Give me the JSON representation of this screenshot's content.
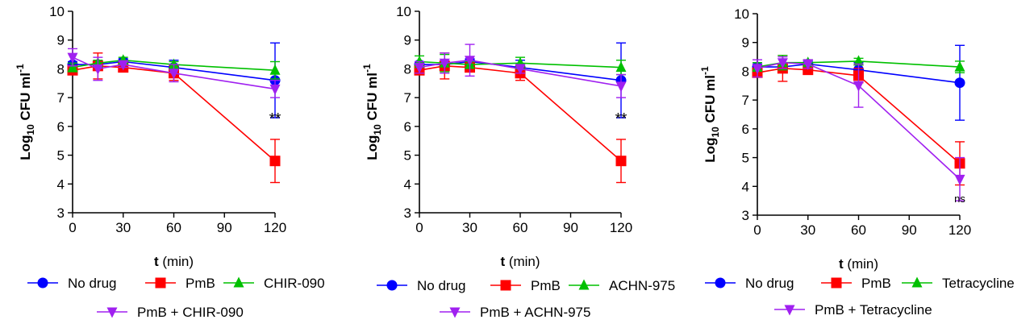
{
  "chart_data": [
    {
      "type": "line",
      "ylabel": {
        "base": "Log",
        "sub": "10",
        "main": " CFU ml",
        "sup": "-1"
      },
      "xlabel": {
        "bold": "t",
        "rest": " (min)"
      },
      "ylim": [
        3,
        10
      ],
      "xlim": [
        0,
        120
      ],
      "yticks": [
        "3",
        "4",
        "5",
        "6",
        "7",
        "8",
        "9",
        "10"
      ],
      "xticks": [
        "0",
        "30",
        "60",
        "90",
        "120"
      ],
      "grid": false,
      "legend_position": "bottom",
      "annotation": {
        "text": "**",
        "x": 120,
        "y": 6.1
      },
      "series": [
        {
          "name": "No drug",
          "color": "#0000ff",
          "marker": "circle",
          "x": [
            0,
            15,
            30,
            60,
            120
          ],
          "y": [
            8.15,
            8.15,
            8.25,
            8.05,
            7.6
          ],
          "err": [
            0.1,
            0.12,
            0.1,
            0.25,
            1.3
          ]
        },
        {
          "name": "PmB",
          "color": "#ff0000",
          "marker": "square",
          "x": [
            0,
            15,
            30,
            60,
            120
          ],
          "y": [
            7.95,
            8.1,
            8.05,
            7.85,
            4.8
          ],
          "err": [
            0.15,
            0.45,
            0.15,
            0.25,
            0.75
          ]
        },
        {
          "name": "CHIR-090",
          "color": "#00c000",
          "marker": "triangle-up",
          "x": [
            0,
            15,
            30,
            60,
            120
          ],
          "y": [
            8.05,
            8.2,
            8.3,
            8.15,
            7.95
          ],
          "err": [
            0.15,
            0.1,
            0.1,
            0.1,
            0.3
          ]
        },
        {
          "name": "PmB + CHIR-090",
          "color": "#a020f0",
          "marker": "triangle-down",
          "x": [
            0,
            15,
            30,
            60,
            120
          ],
          "y": [
            8.4,
            8.0,
            8.15,
            7.85,
            7.3
          ],
          "err": [
            0.3,
            0.4,
            0.1,
            0.3,
            0.3
          ]
        }
      ]
    },
    {
      "type": "line",
      "ylabel": {
        "base": "Log",
        "sub": "10",
        "main": " CFU ml",
        "sup": "-1"
      },
      "xlabel": {
        "bold": "t",
        "rest": " (min)"
      },
      "ylim": [
        3,
        10
      ],
      "xlim": [
        0,
        120
      ],
      "yticks": [
        "3",
        "4",
        "5",
        "6",
        "7",
        "8",
        "9",
        "10"
      ],
      "xticks": [
        "0",
        "30",
        "60",
        "90",
        "120"
      ],
      "grid": false,
      "legend_position": "bottom",
      "annotation": {
        "text": "**",
        "x": 120,
        "y": 6.1
      },
      "series": [
        {
          "name": "No drug",
          "color": "#0000ff",
          "marker": "circle",
          "x": [
            0,
            15,
            30,
            60,
            120
          ],
          "y": [
            8.15,
            8.15,
            8.25,
            8.05,
            7.6
          ],
          "err": [
            0.1,
            0.12,
            0.1,
            0.25,
            1.3
          ]
        },
        {
          "name": "PmB",
          "color": "#ff0000",
          "marker": "square",
          "x": [
            0,
            15,
            30,
            60,
            120
          ],
          "y": [
            7.95,
            8.1,
            8.05,
            7.85,
            4.8
          ],
          "err": [
            0.15,
            0.45,
            0.15,
            0.25,
            0.75
          ]
        },
        {
          "name": "ACHN-975",
          "color": "#00c000",
          "marker": "triangle-up",
          "x": [
            0,
            15,
            30,
            60,
            120
          ],
          "y": [
            8.25,
            8.2,
            8.15,
            8.2,
            8.05
          ],
          "err": [
            0.2,
            0.3,
            0.1,
            0.2,
            0.25
          ]
        },
        {
          "name": "PmB + ACHN-975",
          "color": "#a020f0",
          "marker": "triangle-down",
          "x": [
            0,
            15,
            30,
            60,
            120
          ],
          "y": [
            8.05,
            8.2,
            8.3,
            8.0,
            7.4
          ],
          "err": [
            0.2,
            0.35,
            0.55,
            0.15,
            0.4
          ]
        }
      ]
    },
    {
      "type": "line",
      "ylabel": {
        "base": "Log",
        "sub": "10",
        "main": " CFU ml",
        "sup": "-1"
      },
      "xlabel": {
        "bold": "t",
        "rest": " (min)"
      },
      "ylim": [
        3,
        10
      ],
      "xlim": [
        0,
        120
      ],
      "yticks": [
        "3",
        "4",
        "5",
        "6",
        "7",
        "8",
        "9",
        "10"
      ],
      "xticks": [
        "0",
        "30",
        "60",
        "90",
        "120"
      ],
      "grid": false,
      "legend_position": "bottom",
      "annotation": {
        "text": "ns",
        "x": 120,
        "y": 3.45
      },
      "series": [
        {
          "name": "No drug",
          "color": "#0000ff",
          "marker": "circle",
          "x": [
            0,
            15,
            30,
            60,
            120
          ],
          "y": [
            8.15,
            8.15,
            8.25,
            8.05,
            7.6
          ],
          "err": [
            0.1,
            0.12,
            0.1,
            0.25,
            1.3
          ]
        },
        {
          "name": "PmB",
          "color": "#ff0000",
          "marker": "square",
          "x": [
            0,
            15,
            30,
            60,
            120
          ],
          "y": [
            7.95,
            8.1,
            8.05,
            7.85,
            4.8
          ],
          "err": [
            0.15,
            0.45,
            0.15,
            0.25,
            0.75
          ]
        },
        {
          "name": "Tetracycline",
          "color": "#00c000",
          "marker": "triangle-up",
          "x": [
            0,
            15,
            30,
            60,
            120
          ],
          "y": [
            8.15,
            8.3,
            8.3,
            8.35,
            8.15
          ],
          "err": [
            0.15,
            0.25,
            0.1,
            0.1,
            0.2
          ]
        },
        {
          "name": "PmB + Tetracycline",
          "color": "#a020f0",
          "marker": "triangle-down",
          "x": [
            0,
            15,
            30,
            60,
            120
          ],
          "y": [
            8.1,
            8.3,
            8.25,
            7.5,
            4.25
          ],
          "err": [
            0.3,
            0.2,
            0.15,
            0.75,
            0.75
          ]
        }
      ]
    }
  ]
}
